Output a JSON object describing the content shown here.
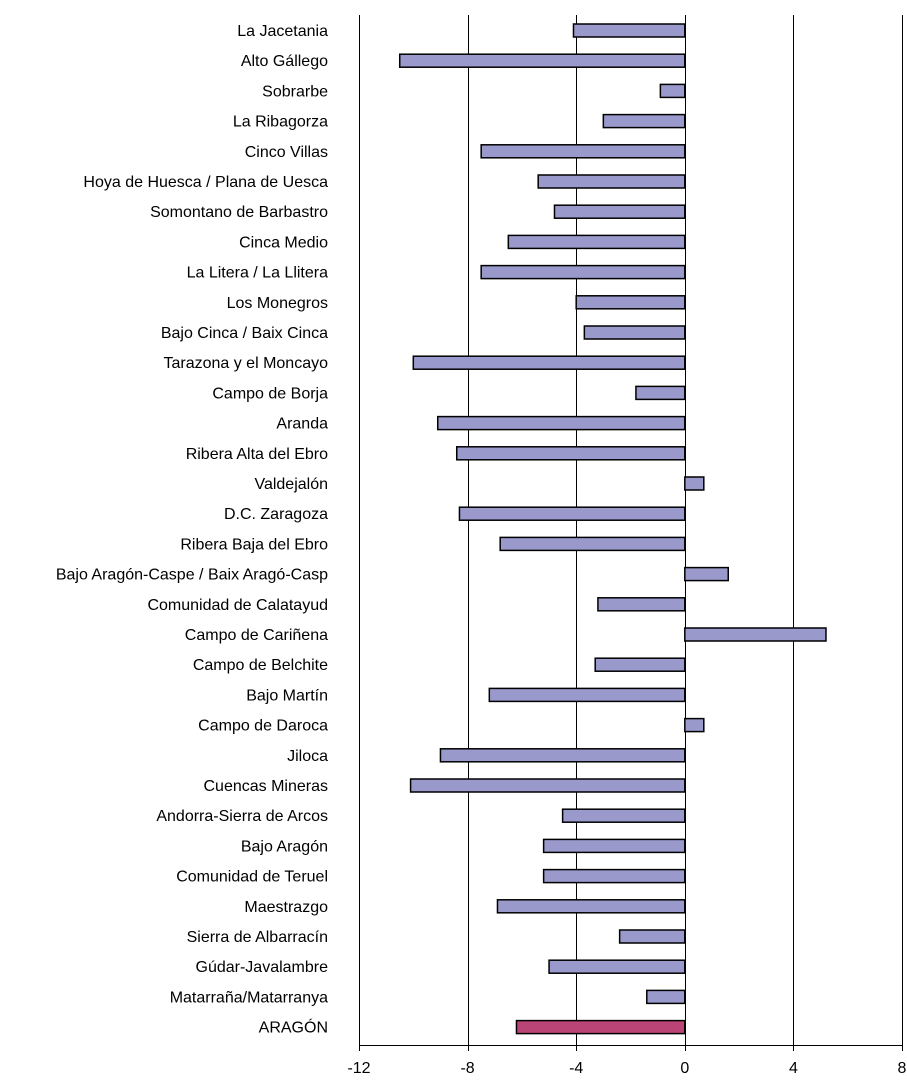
{
  "chart_data": {
    "type": "bar",
    "orientation": "horizontal",
    "title": "",
    "xlabel": "",
    "ylabel": "",
    "xlim": [
      -12,
      8
    ],
    "x_ticks": [
      -12,
      -8,
      -4,
      0,
      4,
      8
    ],
    "grid": true,
    "legend": "none",
    "categories": [
      "La Jacetania",
      "Alto Gállego",
      "Sobrarbe",
      "La Ribagorza",
      "Cinco Villas",
      "Hoya de Huesca / Plana de Uesca",
      "Somontano de Barbastro",
      "Cinca Medio",
      "La Litera / La Llitera",
      "Los Monegros",
      "Bajo Cinca / Baix Cinca",
      "Tarazona y el Moncayo",
      "Campo de Borja",
      "Aranda",
      "Ribera Alta del Ebro",
      "Valdejalón",
      "D.C. Zaragoza",
      "Ribera Baja del Ebro",
      "Bajo Aragón-Caspe / Baix Aragó-Casp",
      "Comunidad de Calatayud",
      "Campo de Cariñena",
      "Campo de Belchite",
      "Bajo Martín",
      "Campo de Daroca",
      "Jiloca",
      "Cuencas Mineras",
      "Andorra-Sierra de Arcos",
      "Bajo Aragón",
      "Comunidad de Teruel",
      "Maestrazgo",
      "Sierra de Albarracín",
      "Gúdar-Javalambre",
      "Matarraña/Matarranya",
      "ARAGÓN"
    ],
    "values": [
      -4.1,
      -10.5,
      -0.9,
      -3.0,
      -7.5,
      -5.4,
      -4.8,
      -6.5,
      -7.5,
      -4.0,
      -3.7,
      -10.0,
      -1.8,
      -9.1,
      -8.4,
      0.7,
      -8.3,
      -6.8,
      1.6,
      -3.2,
      5.2,
      -3.3,
      -7.2,
      0.7,
      -9.0,
      -10.1,
      -4.5,
      -5.2,
      -5.2,
      -6.9,
      -2.4,
      -5.0,
      -1.4,
      -6.2
    ],
    "colors": {
      "default": "#9999cc",
      "highlight": "#bb4477",
      "highlight_category": "ARAGÓN"
    }
  }
}
